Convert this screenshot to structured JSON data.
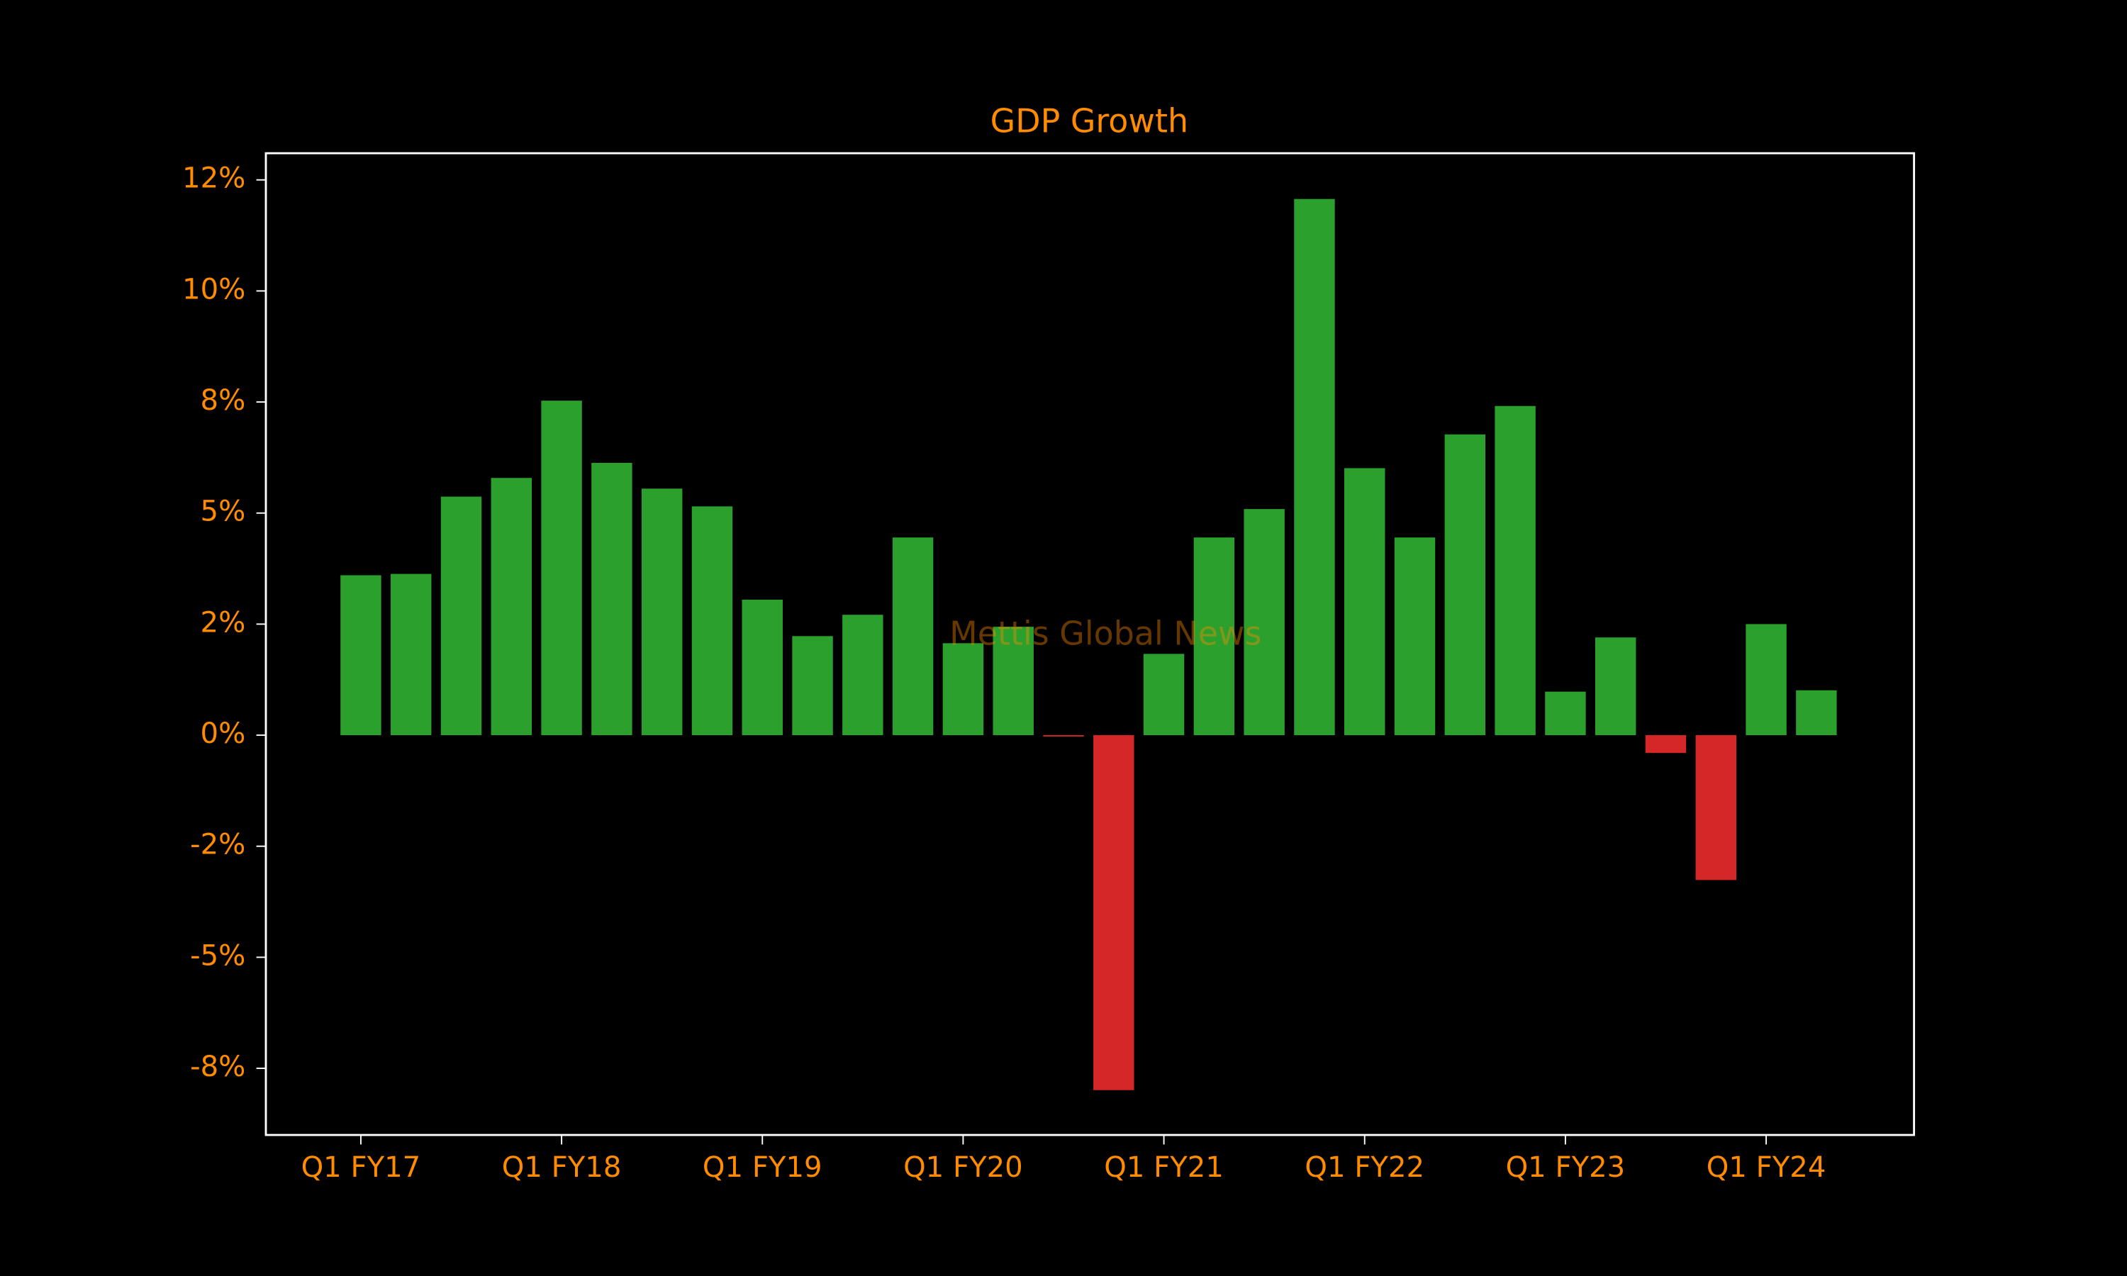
{
  "chart_data": {
    "type": "bar",
    "title": "GDP Growth",
    "watermark": "Mettis Global News",
    "categories": [
      "Q1 FY17",
      null,
      null,
      null,
      "Q1 FY18",
      null,
      null,
      null,
      "Q1 FY19",
      null,
      null,
      null,
      "Q1 FY20",
      null,
      null,
      null,
      "Q1 FY21",
      null,
      null,
      null,
      "Q1 FY22",
      null,
      null,
      null,
      "Q1 FY23",
      null,
      null,
      null,
      "Q1 FY24",
      null
    ],
    "values": [
      3.6,
      3.63,
      5.37,
      5.79,
      7.53,
      6.13,
      5.55,
      5.15,
      3.05,
      2.23,
      2.71,
      4.45,
      2.07,
      2.44,
      -0.03,
      -7.99,
      1.83,
      4.45,
      5.09,
      12.07,
      6.01,
      4.45,
      6.77,
      7.41,
      0.98,
      2.2,
      -0.4,
      -3.26,
      2.5,
      1.01
    ],
    "positive_color": "#2ca02c",
    "negative_color": "#d62728",
    "ylim": [
      -9.0,
      13.1
    ],
    "yticks": [
      {
        "value": -7.5,
        "label": "-8%"
      },
      {
        "value": -5,
        "label": "-5%"
      },
      {
        "value": -2.5,
        "label": "-2%"
      },
      {
        "value": 0,
        "label": "0%"
      },
      {
        "value": 2.5,
        "label": "2%"
      },
      {
        "value": 5,
        "label": "5%"
      },
      {
        "value": 7.5,
        "label": "8%"
      },
      {
        "value": 10,
        "label": "10%"
      },
      {
        "value": 12.5,
        "label": "12%"
      }
    ],
    "grid": false
  }
}
